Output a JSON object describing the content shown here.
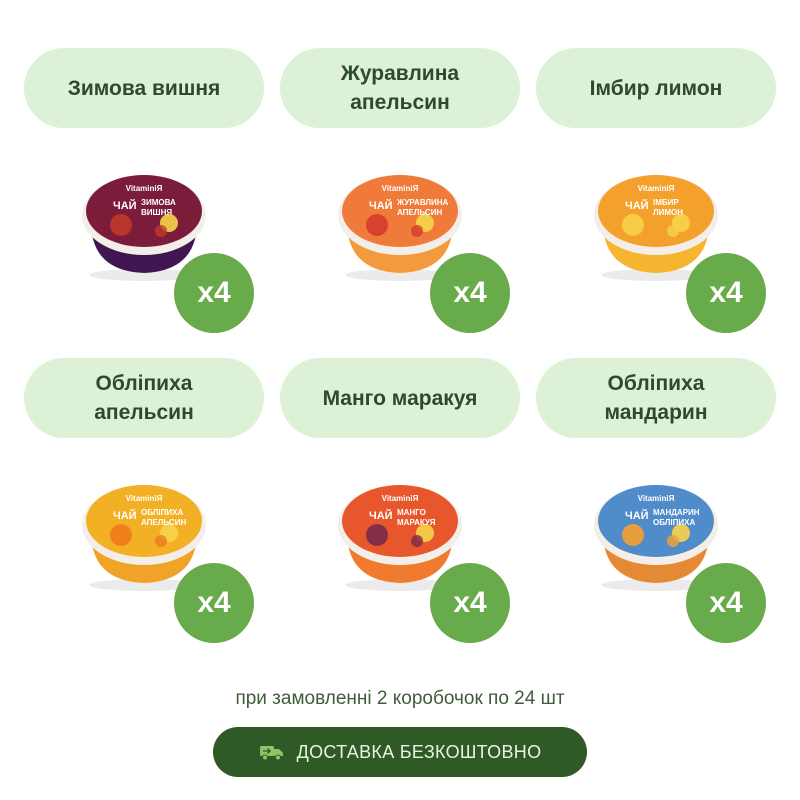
{
  "products": [
    {
      "name": "Зимова вишня",
      "qty": "x4",
      "brand": "VitaminiЯ",
      "cup_label": "ЧАЙ",
      "flavor_label": "ЗИМОВА ВИШНЯ",
      "color_top": "#7b1d3a",
      "color_body": "#3f1650",
      "color_accent": "#c0392b"
    },
    {
      "name": "Журавлина\nапельсин",
      "qty": "x4",
      "brand": "VitaminiЯ",
      "cup_label": "ЧАЙ",
      "flavor_label": "ЖУРАВЛИНА АПЕЛЬСИН",
      "color_top": "#f07a3a",
      "color_body": "#f39a3c",
      "color_accent": "#d63b2f"
    },
    {
      "name": "Імбир лимон",
      "qty": "x4",
      "brand": "VitaminiЯ",
      "cup_label": "ЧАЙ",
      "flavor_label": "ІМБИР ЛИМОН",
      "color_top": "#f3a12c",
      "color_body": "#f5b52e",
      "color_accent": "#f7d24a"
    },
    {
      "name": "Обліпиха\nапельсин",
      "qty": "x4",
      "brand": "VitaminiЯ",
      "cup_label": "ЧАЙ",
      "flavor_label": "ОБЛІПИХА АПЕЛЬСИН",
      "color_top": "#f2b024",
      "color_body": "#f0a327",
      "color_accent": "#f07a1c"
    },
    {
      "name": "Манго маракуя",
      "qty": "x4",
      "brand": "VitaminiЯ",
      "cup_label": "ЧАЙ",
      "flavor_label": "МАНГО МАРАКУЯ",
      "color_top": "#e8562c",
      "color_body": "#f07b30",
      "color_accent": "#7a2a4a"
    },
    {
      "name": "Обліпиха\nмандарин",
      "qty": "x4",
      "brand": "VitaminiЯ",
      "cup_label": "ЧАЙ",
      "flavor_label": "МАНДАРИН ОБЛІПИХА",
      "color_top": "#4f8cc9",
      "color_body": "#e58a32",
      "color_accent": "#f5a22e"
    }
  ],
  "note": "при замовленні 2 коробочок по 24 шт",
  "cta": {
    "label": "ДОСТАВКА БЕЗКОШТОВНО",
    "icon": "truck-icon"
  },
  "colors": {
    "pill_bg": "#dcf1d6",
    "badge_bg": "#67ab4a",
    "cta_bg": "#2f5a25",
    "pill_text": "#2e4a2c"
  }
}
